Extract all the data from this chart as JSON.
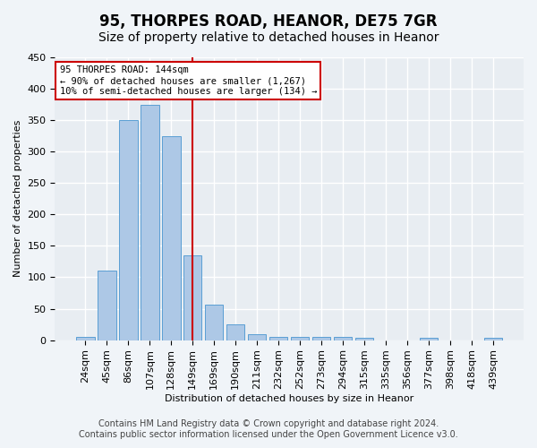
{
  "title": "95, THORPES ROAD, HEANOR, DE75 7GR",
  "subtitle": "Size of property relative to detached houses in Heanor",
  "xlabel": "Distribution of detached houses by size in Heanor",
  "ylabel": "Number of detached properties",
  "categories": [
    "24sqm",
    "45sqm",
    "86sqm",
    "107sqm",
    "128sqm",
    "149sqm",
    "169sqm",
    "190sqm",
    "211sqm",
    "232sqm",
    "252sqm",
    "273sqm",
    "294sqm",
    "315sqm",
    "335sqm",
    "356sqm",
    "377sqm",
    "398sqm",
    "418sqm",
    "439sqm"
  ],
  "values": [
    5,
    110,
    350,
    375,
    325,
    135,
    57,
    25,
    10,
    5,
    5,
    5,
    5,
    3,
    0,
    0,
    3,
    0,
    0,
    3
  ],
  "bar_color": "#adc8e6",
  "bar_edge_color": "#5a9fd4",
  "vline_x_index": 5,
  "vline_color": "#cc0000",
  "property_label": "95 THORPES ROAD: 144sqm",
  "annotation_line1": "← 90% of detached houses are smaller (1,267)",
  "annotation_line2": "10% of semi-detached houses are larger (134) →",
  "annotation_box_color": "#ffffff",
  "annotation_box_edge": "#cc0000",
  "footer1": "Contains HM Land Registry data © Crown copyright and database right 2024.",
  "footer2": "Contains public sector information licensed under the Open Government Licence v3.0.",
  "ylim": [
    0,
    450
  ],
  "background_color": "#f0f4f8",
  "plot_background": "#e8edf2",
  "grid_color": "#ffffff",
  "title_fontsize": 12,
  "subtitle_fontsize": 10,
  "tick_fontsize": 8,
  "footer_fontsize": 7
}
